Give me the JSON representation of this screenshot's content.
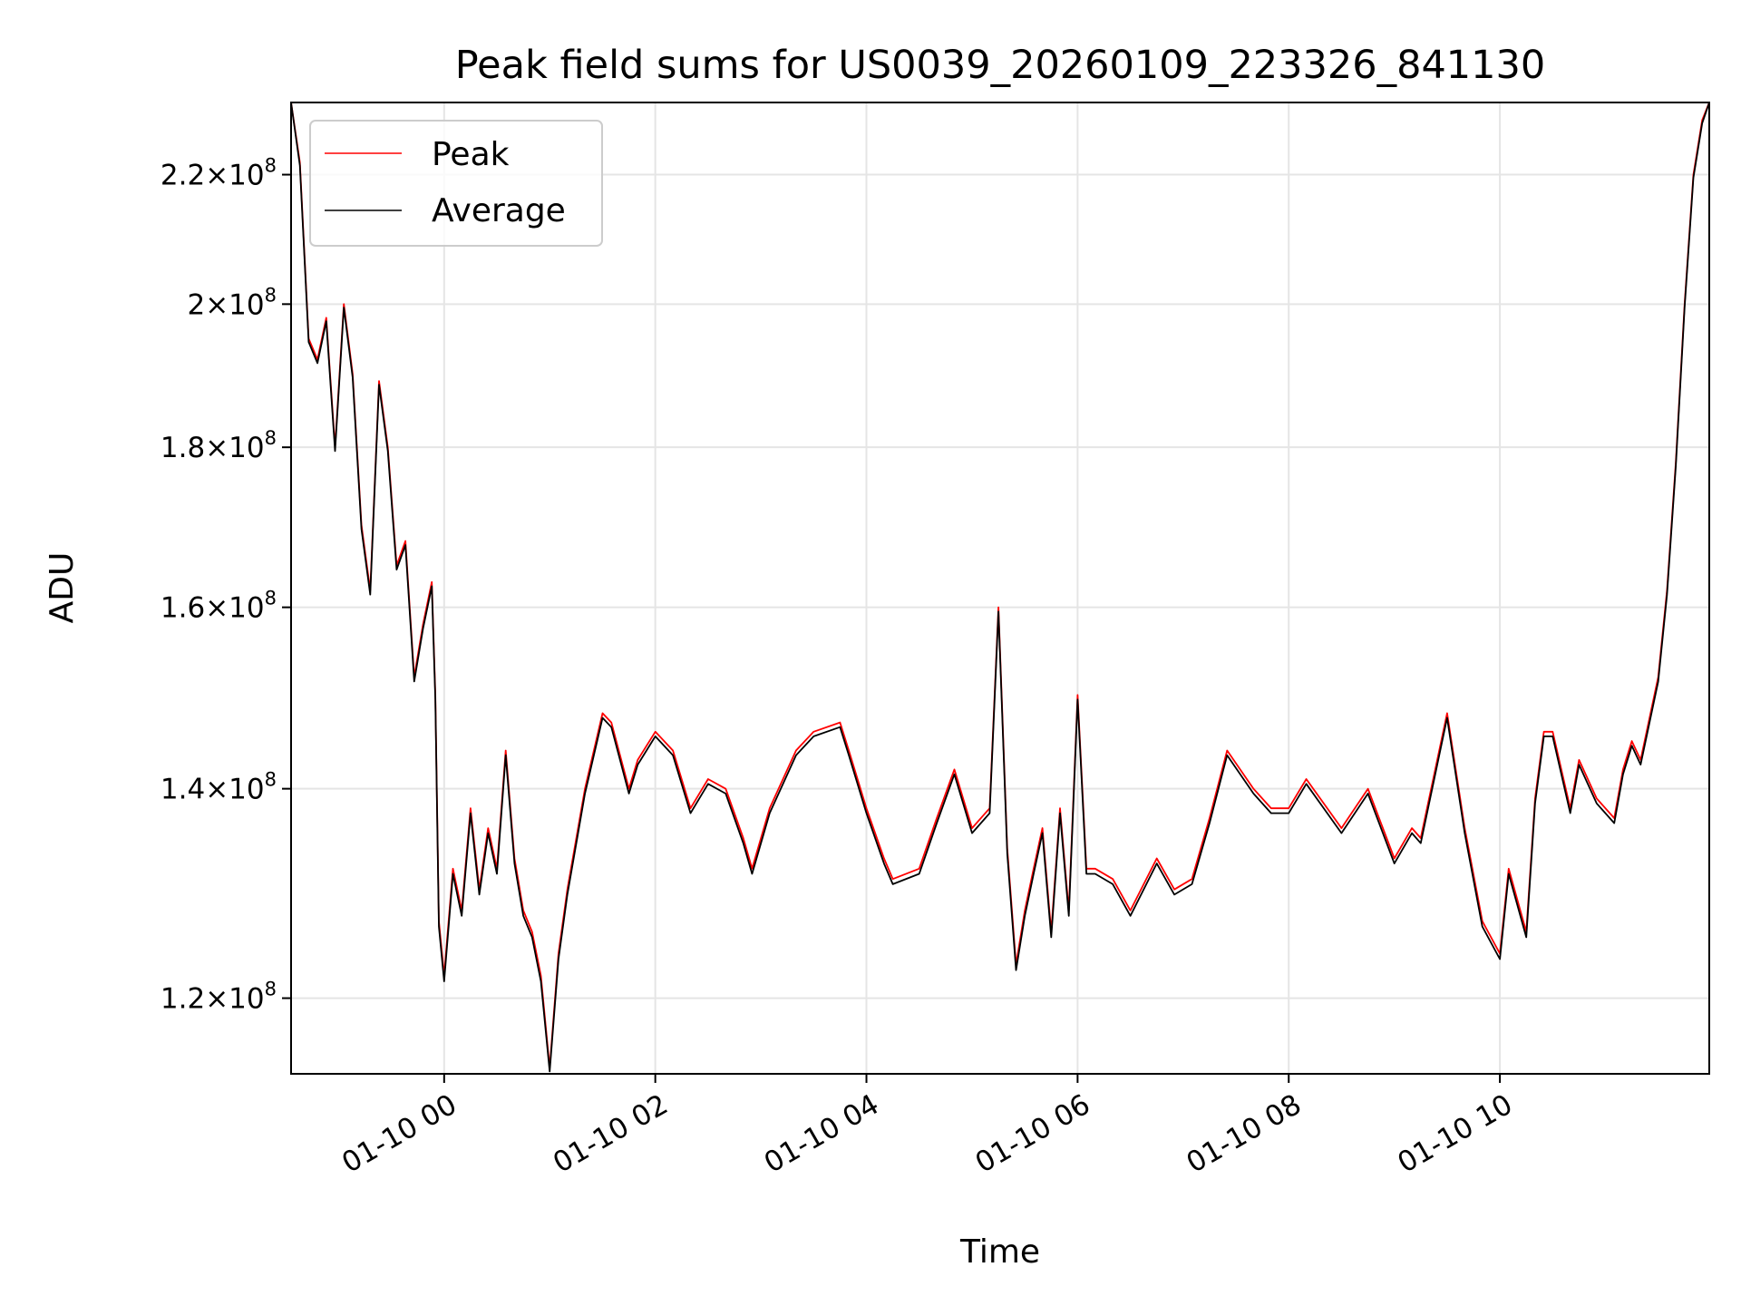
{
  "chart_data": {
    "type": "line",
    "title": "Peak field sums for US0039_20260109_223326_841130",
    "xlabel": "Time",
    "ylabel": "ADU",
    "yscale": "log",
    "grid": true,
    "legend_position": "top-left",
    "x_tick_labels": [
      "01-10 00",
      "01-10 02",
      "01-10 04",
      "01-10 06",
      "01-10 08",
      "01-10 10"
    ],
    "x_ticks": [
      "2026-01-10 00:00",
      "2026-01-10 02:00",
      "2026-01-10 04:00",
      "2026-01-10 06:00",
      "2026-01-10 08:00",
      "2026-01-10 10:00"
    ],
    "xlim": [
      "2026-01-09 22:33",
      "2026-01-10 11:59"
    ],
    "y_ticks": [
      {
        "value": 120000000,
        "mantissa": "1.2",
        "exponent": "8"
      },
      {
        "value": 140000000,
        "mantissa": "1.4",
        "exponent": "8"
      },
      {
        "value": 160000000,
        "mantissa": "1.6",
        "exponent": "8"
      },
      {
        "value": 180000000,
        "mantissa": "1.8",
        "exponent": "8"
      },
      {
        "value": 200000000,
        "mantissa": "2",
        "exponent": "8"
      },
      {
        "value": 220000000,
        "mantissa": "2.2",
        "exponent": "8"
      }
    ],
    "ylim": [
      113500000,
      232000000
    ],
    "colors": {
      "peak": "#ff0000",
      "average": "#000000",
      "grid": "#e5e5e5"
    },
    "series": [
      {
        "name": "Peak",
        "color": "#ff0000",
        "x": [
          "2026-01-09 22:33",
          "2026-01-09 22:38",
          "2026-01-09 22:43",
          "2026-01-09 22:48",
          "2026-01-09 22:53",
          "2026-01-09 22:58",
          "2026-01-09 23:03",
          "2026-01-09 23:08",
          "2026-01-09 23:13",
          "2026-01-09 23:18",
          "2026-01-09 23:23",
          "2026-01-09 23:28",
          "2026-01-09 23:33",
          "2026-01-09 23:38",
          "2026-01-09 23:43",
          "2026-01-09 23:48",
          "2026-01-09 23:53",
          "2026-01-09 23:55",
          "2026-01-09 23:57",
          "2026-01-10 00:00",
          "2026-01-10 00:05",
          "2026-01-10 00:10",
          "2026-01-10 00:15",
          "2026-01-10 00:20",
          "2026-01-10 00:25",
          "2026-01-10 00:30",
          "2026-01-10 00:35",
          "2026-01-10 00:40",
          "2026-01-10 00:45",
          "2026-01-10 00:50",
          "2026-01-10 00:55",
          "2026-01-10 01:00",
          "2026-01-10 01:05",
          "2026-01-10 01:10",
          "2026-01-10 01:20",
          "2026-01-10 01:30",
          "2026-01-10 01:35",
          "2026-01-10 01:45",
          "2026-01-10 01:50",
          "2026-01-10 02:00",
          "2026-01-10 02:10",
          "2026-01-10 02:20",
          "2026-01-10 02:30",
          "2026-01-10 02:40",
          "2026-01-10 02:50",
          "2026-01-10 02:55",
          "2026-01-10 03:05",
          "2026-01-10 03:20",
          "2026-01-10 03:30",
          "2026-01-10 03:45",
          "2026-01-10 03:50",
          "2026-01-10 04:00",
          "2026-01-10 04:10",
          "2026-01-10 04:15",
          "2026-01-10 04:30",
          "2026-01-10 04:40",
          "2026-01-10 04:50",
          "2026-01-10 05:00",
          "2026-01-10 05:10",
          "2026-01-10 05:15",
          "2026-01-10 05:20",
          "2026-01-10 05:25",
          "2026-01-10 05:30",
          "2026-01-10 05:35",
          "2026-01-10 05:40",
          "2026-01-10 05:45",
          "2026-01-10 05:50",
          "2026-01-10 05:55",
          "2026-01-10 06:00",
          "2026-01-10 06:05",
          "2026-01-10 06:10",
          "2026-01-10 06:20",
          "2026-01-10 06:30",
          "2026-01-10 06:45",
          "2026-01-10 06:55",
          "2026-01-10 07:05",
          "2026-01-10 07:15",
          "2026-01-10 07:25",
          "2026-01-10 07:40",
          "2026-01-10 07:50",
          "2026-01-10 08:00",
          "2026-01-10 08:10",
          "2026-01-10 08:30",
          "2026-01-10 08:45",
          "2026-01-10 09:00",
          "2026-01-10 09:10",
          "2026-01-10 09:15",
          "2026-01-10 09:30",
          "2026-01-10 09:40",
          "2026-01-10 09:50",
          "2026-01-10 10:00",
          "2026-01-10 10:05",
          "2026-01-10 10:15",
          "2026-01-10 10:20",
          "2026-01-10 10:25",
          "2026-01-10 10:30",
          "2026-01-10 10:40",
          "2026-01-10 10:45",
          "2026-01-10 10:55",
          "2026-01-10 11:05",
          "2026-01-10 11:10",
          "2026-01-10 11:15",
          "2026-01-10 11:20",
          "2026-01-10 11:30",
          "2026-01-10 11:35",
          "2026-01-10 11:40",
          "2026-01-10 11:45",
          "2026-01-10 11:50",
          "2026-01-10 11:55",
          "2026-01-10 11:59"
        ],
        "values": [
          232000000,
          222000000,
          195000000,
          192000000,
          198000000,
          180000000,
          200000000,
          190000000,
          170000000,
          162000000,
          189000000,
          180000000,
          165000000,
          168000000,
          152000000,
          158000000,
          163000000,
          150000000,
          127000000,
          122000000,
          132000000,
          128000000,
          138000000,
          130000000,
          136000000,
          132000000,
          144000000,
          133000000,
          128000000,
          126000000,
          122000000,
          114000000,
          124000000,
          130000000,
          140000000,
          148000000,
          147000000,
          140000000,
          143000000,
          146000000,
          144000000,
          138000000,
          141000000,
          140000000,
          135000000,
          132000000,
          138000000,
          144000000,
          146000000,
          147000000,
          144000000,
          138000000,
          133000000,
          131000000,
          132000000,
          137000000,
          142000000,
          136000000,
          138000000,
          160000000,
          134000000,
          123000000,
          128000000,
          132000000,
          136000000,
          126000000,
          138000000,
          128000000,
          150000000,
          132000000,
          132000000,
          131000000,
          128000000,
          133000000,
          130000000,
          131000000,
          137000000,
          144000000,
          140000000,
          138000000,
          138000000,
          141000000,
          136000000,
          140000000,
          133000000,
          136000000,
          135000000,
          148000000,
          136000000,
          127000000,
          124000000,
          132000000,
          126000000,
          139000000,
          146000000,
          146000000,
          138000000,
          143000000,
          139000000,
          137000000,
          142000000,
          145000000,
          143000000,
          152000000,
          162000000,
          178000000,
          200000000,
          220000000,
          229000000,
          232000000
        ]
      },
      {
        "name": "Average",
        "color": "#000000",
        "x": [
          "2026-01-09 22:33",
          "2026-01-09 22:38",
          "2026-01-09 22:43",
          "2026-01-09 22:48",
          "2026-01-09 22:53",
          "2026-01-09 22:58",
          "2026-01-09 23:03",
          "2026-01-09 23:08",
          "2026-01-09 23:13",
          "2026-01-09 23:18",
          "2026-01-09 23:23",
          "2026-01-09 23:28",
          "2026-01-09 23:33",
          "2026-01-09 23:38",
          "2026-01-09 23:43",
          "2026-01-09 23:48",
          "2026-01-09 23:53",
          "2026-01-09 23:55",
          "2026-01-09 23:57",
          "2026-01-10 00:00",
          "2026-01-10 00:05",
          "2026-01-10 00:10",
          "2026-01-10 00:15",
          "2026-01-10 00:20",
          "2026-01-10 00:25",
          "2026-01-10 00:30",
          "2026-01-10 00:35",
          "2026-01-10 00:40",
          "2026-01-10 00:45",
          "2026-01-10 00:50",
          "2026-01-10 00:55",
          "2026-01-10 01:00",
          "2026-01-10 01:05",
          "2026-01-10 01:10",
          "2026-01-10 01:20",
          "2026-01-10 01:30",
          "2026-01-10 01:35",
          "2026-01-10 01:45",
          "2026-01-10 01:50",
          "2026-01-10 02:00",
          "2026-01-10 02:10",
          "2026-01-10 02:20",
          "2026-01-10 02:30",
          "2026-01-10 02:40",
          "2026-01-10 02:50",
          "2026-01-10 02:55",
          "2026-01-10 03:05",
          "2026-01-10 03:20",
          "2026-01-10 03:30",
          "2026-01-10 03:45",
          "2026-01-10 03:50",
          "2026-01-10 04:00",
          "2026-01-10 04:10",
          "2026-01-10 04:15",
          "2026-01-10 04:30",
          "2026-01-10 04:40",
          "2026-01-10 04:50",
          "2026-01-10 05:00",
          "2026-01-10 05:10",
          "2026-01-10 05:15",
          "2026-01-10 05:20",
          "2026-01-10 05:25",
          "2026-01-10 05:30",
          "2026-01-10 05:35",
          "2026-01-10 05:40",
          "2026-01-10 05:45",
          "2026-01-10 05:50",
          "2026-01-10 05:55",
          "2026-01-10 06:00",
          "2026-01-10 06:05",
          "2026-01-10 06:10",
          "2026-01-10 06:20",
          "2026-01-10 06:30",
          "2026-01-10 06:45",
          "2026-01-10 06:55",
          "2026-01-10 07:05",
          "2026-01-10 07:15",
          "2026-01-10 07:25",
          "2026-01-10 07:40",
          "2026-01-10 07:50",
          "2026-01-10 08:00",
          "2026-01-10 08:10",
          "2026-01-10 08:30",
          "2026-01-10 08:45",
          "2026-01-10 09:00",
          "2026-01-10 09:10",
          "2026-01-10 09:15",
          "2026-01-10 09:30",
          "2026-01-10 09:40",
          "2026-01-10 09:50",
          "2026-01-10 10:00",
          "2026-01-10 10:05",
          "2026-01-10 10:15",
          "2026-01-10 10:20",
          "2026-01-10 10:25",
          "2026-01-10 10:30",
          "2026-01-10 10:40",
          "2026-01-10 10:45",
          "2026-01-10 10:55",
          "2026-01-10 11:05",
          "2026-01-10 11:10",
          "2026-01-10 11:15",
          "2026-01-10 11:20",
          "2026-01-10 11:30",
          "2026-01-10 11:35",
          "2026-01-10 11:40",
          "2026-01-10 11:45",
          "2026-01-10 11:50",
          "2026-01-10 11:55",
          "2026-01-10 11:59"
        ],
        "values": [
          232000000,
          221500000,
          194500000,
          191500000,
          197500000,
          179500000,
          199500000,
          189500000,
          169500000,
          161500000,
          188500000,
          179500000,
          164500000,
          167500000,
          151500000,
          157500000,
          162500000,
          149500000,
          126500000,
          121500000,
          131500000,
          127500000,
          137500000,
          129500000,
          135500000,
          131500000,
          143500000,
          132500000,
          127500000,
          125500000,
          121500000,
          113700000,
          123500000,
          129500000,
          139500000,
          147500000,
          146500000,
          139500000,
          142500000,
          145500000,
          143500000,
          137500000,
          140500000,
          139500000,
          134500000,
          131500000,
          137500000,
          143500000,
          145500000,
          146500000,
          143500000,
          137500000,
          132500000,
          130500000,
          131500000,
          136500000,
          141500000,
          135500000,
          137500000,
          159500000,
          133500000,
          122500000,
          127500000,
          131500000,
          135500000,
          125500000,
          137500000,
          127500000,
          149500000,
          131500000,
          131500000,
          130500000,
          127500000,
          132500000,
          129500000,
          130500000,
          136500000,
          143500000,
          139500000,
          137500000,
          137500000,
          140500000,
          135500000,
          139500000,
          132500000,
          135500000,
          134500000,
          147500000,
          135500000,
          126500000,
          123500000,
          131500000,
          125500000,
          138500000,
          145500000,
          145500000,
          137500000,
          142500000,
          138500000,
          136500000,
          141500000,
          144500000,
          142500000,
          151500000,
          161500000,
          177500000,
          199500000,
          219500000,
          228500000,
          232000000
        ]
      }
    ]
  }
}
